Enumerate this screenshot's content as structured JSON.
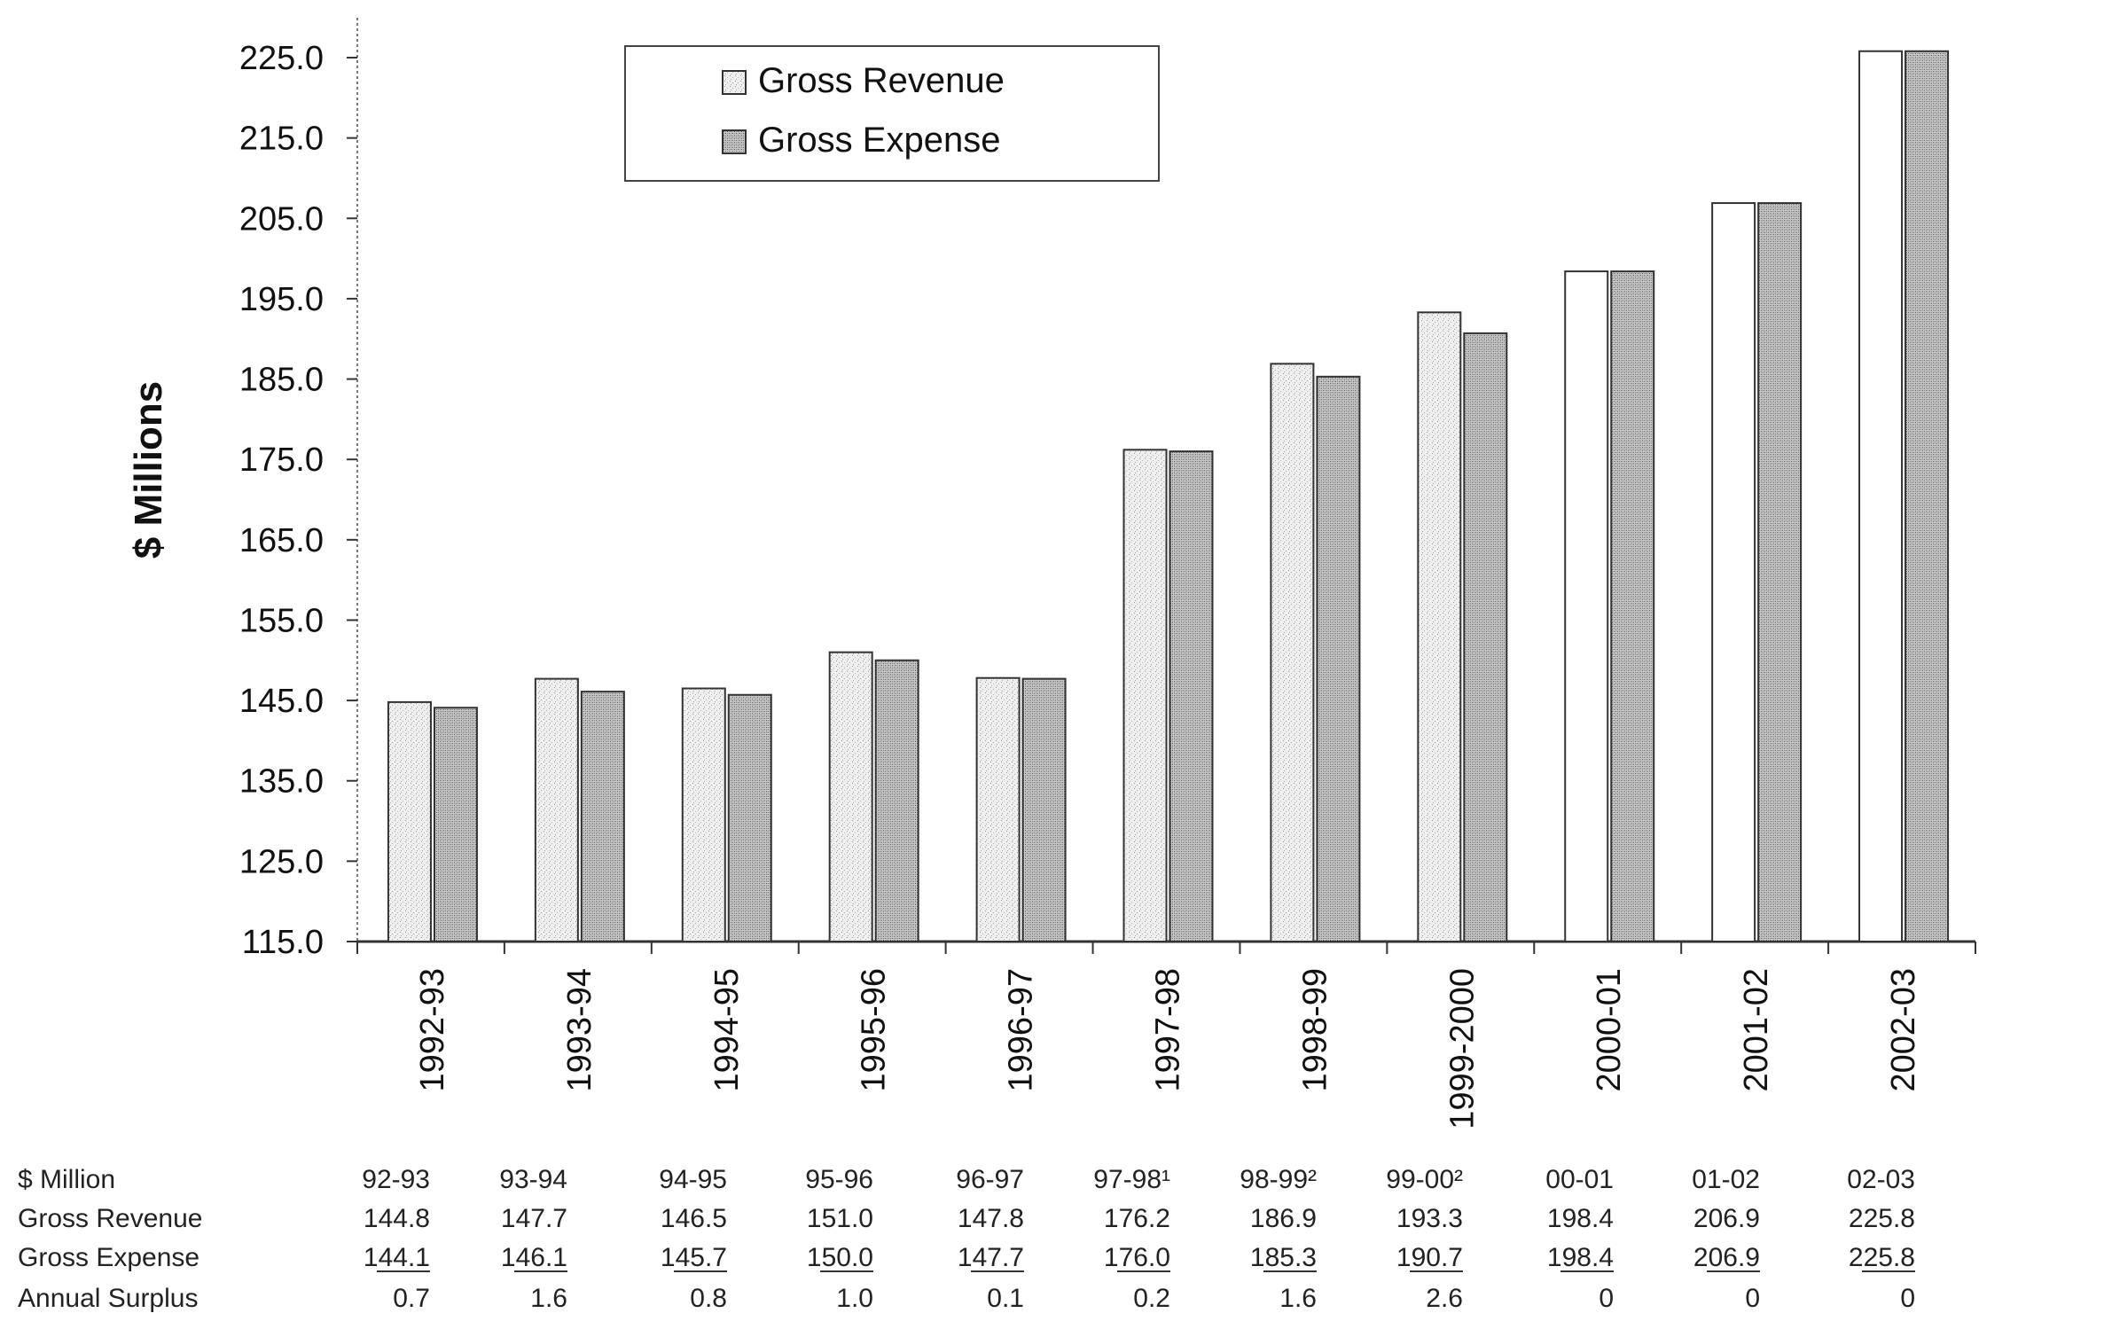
{
  "chart_data": {
    "type": "bar",
    "ylabel": "$ Millions",
    "ylim": [
      115,
      227
    ],
    "yticks": [
      "225.0",
      "215.0",
      "205.0",
      "195.0",
      "185.0",
      "175.0",
      "165.0",
      "155.0",
      "145.0",
      "135.0",
      "125.0",
      "115.0"
    ],
    "categories": [
      "1992-93",
      "1993-94",
      "1994-95",
      "1995-96",
      "1996-97",
      "1997-98",
      "1998-99",
      "1999-2000",
      "2000-01",
      "2001-02",
      "2002-03"
    ],
    "series": [
      {
        "name": "Gross Revenue",
        "values": [
          144.8,
          147.7,
          146.5,
          151.0,
          147.8,
          176.2,
          186.9,
          193.3,
          198.4,
          206.9,
          225.8
        ],
        "color": "#e6e6e6"
      },
      {
        "name": "Gross Expense",
        "values": [
          144.1,
          146.1,
          145.7,
          150.0,
          147.7,
          176.0,
          185.3,
          190.7,
          198.4,
          206.9,
          225.8
        ],
        "color": "#8c8c8c"
      }
    ],
    "legend_position": "top-center",
    "grid": false
  },
  "table": {
    "header_label": "$ Million",
    "columns": [
      "92-93",
      "93-94",
      "94-95",
      "95-96",
      "96-97",
      "97-98¹",
      "98-99²",
      "99-00²",
      "00-01",
      "01-02",
      "02-03"
    ],
    "rows": [
      {
        "label": "Gross Revenue",
        "values": [
          "144.8",
          "147.7",
          "146.5",
          "151.0",
          "147.8",
          "176.2",
          "186.9",
          "193.3",
          "198.4",
          "206.9",
          "225.8"
        ],
        "underline": false
      },
      {
        "label": "Gross Expense",
        "values": [
          "144.1",
          "146.1",
          "145.7",
          "150.0",
          "147.7",
          "176.0",
          "185.3",
          "190.7",
          "198.4",
          "206.9",
          "225.8"
        ],
        "underline": true
      },
      {
        "label": "Annual Surplus",
        "values": [
          "0.7",
          "1.6",
          "0.8",
          "1.0",
          "0.1",
          "0.2",
          "1.6",
          "2.6",
          "0",
          "0",
          "0"
        ],
        "underline": false
      }
    ]
  }
}
